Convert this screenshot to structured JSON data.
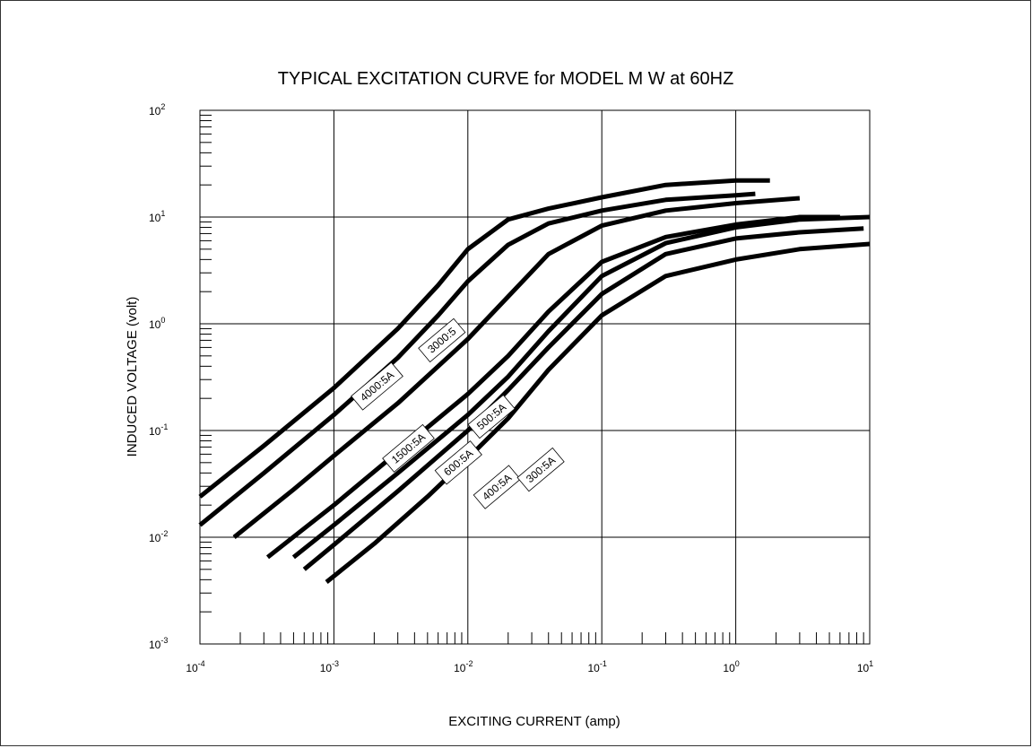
{
  "chart_data": {
    "type": "line",
    "title": "TYPICAL EXCITATION CURVE for  MODEL M  W at 60HZ",
    "xlabel": "EXCITING CURRENT (amp)",
    "ylabel": "INDUCED VOLTAGE (volt)",
    "xscale": "log",
    "yscale": "log",
    "xlim": [
      0.0001,
      10
    ],
    "ylim": [
      0.001,
      100
    ],
    "grid": true,
    "legend": "none",
    "line_color": "#000000",
    "x_tick_labels": [
      {
        "base": "10",
        "exp": "-4"
      },
      {
        "base": "10",
        "exp": "-3"
      },
      {
        "base": "10",
        "exp": "-2"
      },
      {
        "base": "10",
        "exp": "-1"
      },
      {
        "base": "10",
        "exp": "0"
      },
      {
        "base": "10",
        "exp": "1"
      }
    ],
    "y_tick_labels": [
      {
        "base": "10",
        "exp": "-3"
      },
      {
        "base": "10",
        "exp": "-2"
      },
      {
        "base": "10",
        "exp": "-1"
      },
      {
        "base": "10",
        "exp": "0"
      },
      {
        "base": "10",
        "exp": "1"
      },
      {
        "base": "10",
        "exp": "2"
      }
    ],
    "series": [
      {
        "name": "4000:5A",
        "label_at": [
          0.0021,
          0.26
        ],
        "points": [
          [
            0.0001,
            0.024
          ],
          [
            0.0003,
            0.072
          ],
          [
            0.001,
            0.25
          ],
          [
            0.003,
            0.9
          ],
          [
            0.006,
            2.3
          ],
          [
            0.01,
            5.0
          ],
          [
            0.02,
            9.5
          ],
          [
            0.04,
            12.0
          ],
          [
            0.1,
            15.3
          ],
          [
            0.3,
            20.0
          ],
          [
            1.0,
            22.0
          ],
          [
            1.8,
            22.0
          ]
        ]
      },
      {
        "name": "3000:5",
        "label_at": [
          0.0064,
          0.7
        ],
        "points": [
          [
            0.0001,
            0.013
          ],
          [
            0.0003,
            0.04
          ],
          [
            0.001,
            0.14
          ],
          [
            0.003,
            0.48
          ],
          [
            0.006,
            1.2
          ],
          [
            0.01,
            2.5
          ],
          [
            0.02,
            5.5
          ],
          [
            0.04,
            8.7
          ],
          [
            0.1,
            11.5
          ],
          [
            0.3,
            14.5
          ],
          [
            1.0,
            16.0
          ],
          [
            1.4,
            16.5
          ]
        ]
      },
      {
        "name": "1500:5A",
        "label_at": [
          0.0036,
          0.068
        ],
        "points": [
          [
            0.00018,
            0.01
          ],
          [
            0.0005,
            0.028
          ],
          [
            0.001,
            0.058
          ],
          [
            0.003,
            0.18
          ],
          [
            0.01,
            0.72
          ],
          [
            0.02,
            1.8
          ],
          [
            0.04,
            4.5
          ],
          [
            0.1,
            8.3
          ],
          [
            0.3,
            11.5
          ],
          [
            1.0,
            13.5
          ],
          [
            3.0,
            15.0
          ]
        ]
      },
      {
        "name": "600:5A",
        "label_at": [
          0.0085,
          0.05
        ],
        "points": [
          [
            0.00032,
            0.0065
          ],
          [
            0.001,
            0.02
          ],
          [
            0.003,
            0.063
          ],
          [
            0.01,
            0.22
          ],
          [
            0.02,
            0.5
          ],
          [
            0.04,
            1.3
          ],
          [
            0.1,
            3.8
          ],
          [
            0.3,
            6.5
          ],
          [
            1.0,
            8.5
          ],
          [
            3.0,
            10.0
          ],
          [
            6.0,
            10.0
          ]
        ]
      },
      {
        "name": "500:5A",
        "label_at": [
          0.015,
          0.135
        ],
        "points": [
          [
            0.0005,
            0.0065
          ],
          [
            0.001,
            0.013
          ],
          [
            0.003,
            0.04
          ],
          [
            0.01,
            0.14
          ],
          [
            0.02,
            0.32
          ],
          [
            0.04,
            0.85
          ],
          [
            0.1,
            2.8
          ],
          [
            0.3,
            5.7
          ],
          [
            1.0,
            8.0
          ],
          [
            3.0,
            9.5
          ],
          [
            10.0,
            10.0
          ]
        ]
      },
      {
        "name": "400:5A",
        "label_at": [
          0.0165,
          0.0295
        ],
        "points": [
          [
            0.0006,
            0.005
          ],
          [
            0.001,
            0.0085
          ],
          [
            0.003,
            0.027
          ],
          [
            0.01,
            0.1
          ],
          [
            0.02,
            0.24
          ],
          [
            0.04,
            0.6
          ],
          [
            0.1,
            1.9
          ],
          [
            0.3,
            4.5
          ],
          [
            1.0,
            6.3
          ],
          [
            3.0,
            7.2
          ],
          [
            9.0,
            7.8
          ]
        ]
      },
      {
        "name": "300:5A",
        "label_at": [
          0.035,
          0.043
        ],
        "points": [
          [
            0.00088,
            0.0038
          ],
          [
            0.002,
            0.0087
          ],
          [
            0.005,
            0.024
          ],
          [
            0.01,
            0.055
          ],
          [
            0.02,
            0.13
          ],
          [
            0.04,
            0.37
          ],
          [
            0.1,
            1.2
          ],
          [
            0.3,
            2.8
          ],
          [
            1.0,
            4.0
          ],
          [
            3.0,
            5.0
          ],
          [
            10.0,
            5.6
          ]
        ]
      }
    ]
  }
}
